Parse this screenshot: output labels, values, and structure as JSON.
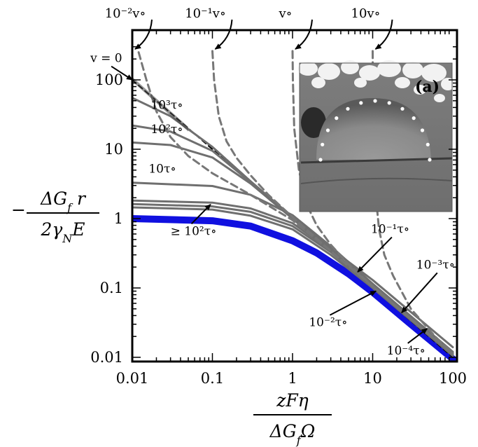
{
  "chart_data": {
    "type": "line",
    "scale": {
      "x": "log",
      "y": "log"
    },
    "xlim": [
      0.01,
      100
    ],
    "ylim": [
      0.01,
      300
    ],
    "x_ticks": [
      {
        "value": 0.01,
        "label": "0.01"
      },
      {
        "value": 0.1,
        "label": "0.1"
      },
      {
        "value": 1,
        "label": "1"
      },
      {
        "value": 10,
        "label": "10"
      },
      {
        "value": 100,
        "label": "100"
      }
    ],
    "y_ticks": [
      {
        "value": 100,
        "label": "100"
      },
      {
        "value": 10,
        "label": "10"
      },
      {
        "value": 1,
        "label": "1"
      },
      {
        "value": 0.1,
        "label": "0.1"
      },
      {
        "value": 0.01,
        "label": "0.01"
      }
    ],
    "xlabel": {
      "numerator": "zFη",
      "denominator": "ΔG_fΩ"
    },
    "ylabel": {
      "prefix": "−",
      "numerator": "ΔG_f r",
      "denominator": "2γ_NE"
    },
    "top_axis_labels": [
      {
        "x": 0.01,
        "text": "10⁻²v∘"
      },
      {
        "x": 0.1,
        "text": "10⁻¹v∘"
      },
      {
        "x": 1,
        "text": "v∘"
      },
      {
        "x": 10,
        "text": "10v∘"
      }
    ],
    "series": [
      {
        "style": "thick-blue",
        "color": "#1010e0",
        "x": [
          0.01,
          0.1,
          0.3,
          1,
          2,
          5,
          10,
          30,
          100
        ],
        "y": [
          1.0,
          0.93,
          0.78,
          0.48,
          0.32,
          0.16,
          0.087,
          0.03,
          0.0095
        ]
      },
      {
        "style": "black-dashed",
        "color": "#000000",
        "x": [
          0.01,
          0.1,
          1,
          10,
          100
        ],
        "y": [
          100,
          10,
          1,
          0.1,
          0.01
        ]
      },
      {
        "style": "gray",
        "color": "#6f6f6f",
        "x": [
          0.01,
          0.1,
          0.3,
          1,
          3,
          10,
          100
        ],
        "y": [
          1.45,
          1.35,
          1.1,
          0.7,
          0.3,
          0.1,
          0.0105
        ]
      },
      {
        "style": "gray",
        "color": "#6f6f6f",
        "x": [
          0.01,
          0.1,
          0.3,
          1,
          3,
          10,
          100
        ],
        "y": [
          1.62,
          1.5,
          1.25,
          0.78,
          0.33,
          0.105,
          0.011
        ]
      },
      {
        "style": "gray",
        "color": "#6f6f6f",
        "x": [
          0.01,
          0.1,
          0.3,
          1,
          3,
          10,
          100
        ],
        "y": [
          1.82,
          1.7,
          1.4,
          0.86,
          0.35,
          0.11,
          0.0115
        ]
      },
      {
        "style": "gray",
        "color": "#6f6f6f",
        "x": [
          0.01,
          0.1,
          0.3,
          1,
          3,
          10,
          100
        ],
        "y": [
          3.3,
          2.95,
          2.2,
          1.12,
          0.4,
          0.115,
          0.012
        ]
      },
      {
        "style": "gray",
        "color": "#6f6f6f",
        "x": [
          0.01,
          0.03,
          0.1,
          0.3,
          1,
          3,
          10,
          100
        ],
        "y": [
          12.5,
          11.5,
          7.6,
          3.2,
          1.0,
          0.34,
          0.105,
          0.0115
        ]
      },
      {
        "style": "gray",
        "color": "#6f6f6f",
        "x": [
          0.01,
          0.03,
          0.1,
          0.3,
          1,
          3,
          10,
          100
        ],
        "y": [
          22,
          18,
          9.5,
          3.35,
          1.0,
          0.335,
          0.1,
          0.011
        ]
      },
      {
        "style": "gray",
        "color": "#6f6f6f",
        "x": [
          0.01,
          0.03,
          0.1,
          0.3,
          1,
          3,
          10,
          100
        ],
        "y": [
          55,
          30,
          10.8,
          3.45,
          1.05,
          0.37,
          0.13,
          0.014
        ]
      },
      {
        "style": "gray-dashed",
        "color": "#777777",
        "x": [
          0.012,
          0.015,
          0.02,
          0.03,
          0.05,
          0.1,
          0.3,
          1,
          3,
          10,
          100
        ],
        "y": [
          250,
          100,
          35,
          15,
          8,
          4.5,
          2.2,
          0.95,
          0.34,
          0.105,
          0.011
        ]
      },
      {
        "style": "gray-dashed",
        "color": "#777777",
        "x": [
          0.1,
          0.105,
          0.12,
          0.15,
          0.2,
          0.3,
          0.5,
          1,
          3,
          10,
          100
        ],
        "y": [
          260,
          100,
          30,
          13,
          7.5,
          4.2,
          2.2,
          1.05,
          0.34,
          0.105,
          0.011
        ]
      },
      {
        "style": "gray-dashed",
        "color": "#777777",
        "x": [
          1,
          1.01,
          1.05,
          1.2,
          1.5,
          2,
          3,
          5,
          10,
          100
        ],
        "y": [
          260,
          100,
          20,
          5,
          1.6,
          0.8,
          0.42,
          0.22,
          0.105,
          0.011
        ]
      },
      {
        "style": "gray-dashed",
        "color": "#777777",
        "x": [
          10,
          10.05,
          10.3,
          11,
          12,
          14,
          18,
          30,
          60,
          100
        ],
        "y": [
          260,
          100,
          10,
          2,
          0.7,
          0.3,
          0.15,
          0.05,
          0.02,
          0.0115
        ]
      }
    ],
    "annotations": [
      {
        "text": "v = 0",
        "x": 0.003,
        "y": 180,
        "arrow_to": [
          0.01,
          100
        ]
      },
      {
        "text": "10³τ∘",
        "x": 0.017,
        "y": 38
      },
      {
        "text": "10²τ∘",
        "x": 0.017,
        "y": 17
      },
      {
        "text": "10τ∘",
        "x": 0.016,
        "y": 4.6
      },
      {
        "text": "≥ 10²τ∘",
        "x": 0.03,
        "y": 0.58,
        "arrow_to": [
          0.095,
          1.6
        ]
      },
      {
        "text": "10⁻¹τ∘",
        "x": 9.5,
        "y": 0.62,
        "arrow_to": [
          6.5,
          0.17
        ]
      },
      {
        "text": "10⁻³τ∘",
        "x": 35,
        "y": 0.19,
        "arrow_to": [
          23,
          0.044
        ]
      },
      {
        "text": "10⁻²τ∘",
        "x": 1.6,
        "y": 0.028,
        "arrow_to": [
          11,
          0.09
        ]
      },
      {
        "text": "10⁻⁴τ∘",
        "x": 15,
        "y": 0.011,
        "arrow_to": [
          48,
          0.026
        ]
      }
    ],
    "inset": {
      "label": "(a)"
    }
  }
}
